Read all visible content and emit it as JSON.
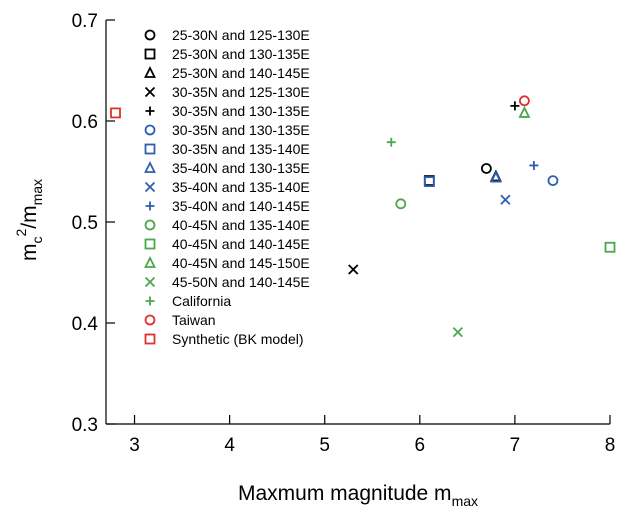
{
  "chart_data": {
    "type": "scatter",
    "title": "",
    "xlabel": {
      "main": "Maxmum magnitude m",
      "sub": "max"
    },
    "ylabel": {
      "m": "m",
      "c_sub": "c",
      "sup": "2",
      "slash": "/m",
      "max_sub": "max"
    },
    "xlim": [
      2.7,
      8.0
    ],
    "ylim": [
      0.3,
      0.7
    ],
    "xticks": [
      3,
      4,
      5,
      6,
      7,
      8
    ],
    "yticks": [
      0.3,
      0.4,
      0.5,
      0.6,
      0.7
    ],
    "xtick_labels": [
      "3",
      "4",
      "5",
      "6",
      "7",
      "8"
    ],
    "ytick_labels": [
      "0.3",
      "0.4",
      "0.5",
      "0.6",
      "0.7"
    ],
    "grid": false,
    "legend_position": "top-left",
    "series": [
      {
        "name": "25-30N and 125-130E",
        "marker": "circle",
        "color": "#000000",
        "points": [
          [
            6.7,
            0.553
          ]
        ]
      },
      {
        "name": "25-30N and 130-135E",
        "marker": "square",
        "color": "#000000",
        "points": [
          [
            6.1,
            0.541
          ]
        ]
      },
      {
        "name": "25-30N and 140-145E",
        "marker": "triangle",
        "color": "#000000",
        "points": [
          [
            6.8,
            0.545
          ]
        ]
      },
      {
        "name": "30-35N and 125-130E",
        "marker": "x",
        "color": "#000000",
        "points": [
          [
            5.3,
            0.453
          ]
        ]
      },
      {
        "name": "30-35N and 130-135E",
        "marker": "plus",
        "color": "#000000",
        "points": [
          [
            7.0,
            0.615
          ]
        ]
      },
      {
        "name": "30-35N and 130-135E",
        "marker": "circle",
        "color": "#2f5fb3",
        "points": [
          [
            7.4,
            0.541
          ]
        ]
      },
      {
        "name": "30-35N and 135-140E",
        "marker": "square",
        "color": "#2f5fb3",
        "points": [
          [
            6.1,
            0.54
          ]
        ]
      },
      {
        "name": "35-40N and 130-135E",
        "marker": "triangle",
        "color": "#2f5fb3",
        "points": [
          [
            6.8,
            0.544
          ]
        ]
      },
      {
        "name": "35-40N and 135-140E",
        "marker": "x",
        "color": "#2f5fb3",
        "points": [
          [
            6.9,
            0.522
          ]
        ]
      },
      {
        "name": "35-40N and 140-145E",
        "marker": "plus",
        "color": "#2f5fb3",
        "points": [
          [
            7.2,
            0.556
          ]
        ]
      },
      {
        "name": "40-45N and 135-140E",
        "marker": "circle",
        "color": "#4aa84a",
        "points": [
          [
            5.8,
            0.518
          ]
        ]
      },
      {
        "name": "40-45N and 140-145E",
        "marker": "square",
        "color": "#4aa84a",
        "points": [
          [
            8.0,
            0.475
          ]
        ]
      },
      {
        "name": "40-45N and 145-150E",
        "marker": "triangle",
        "color": "#4aa84a",
        "points": [
          [
            7.1,
            0.608
          ]
        ]
      },
      {
        "name": "45-50N and 140-145E",
        "marker": "x",
        "color": "#4aa84a",
        "points": [
          [
            6.4,
            0.391
          ]
        ]
      },
      {
        "name": "California",
        "marker": "plus",
        "color": "#4aa84a",
        "points": [
          [
            5.7,
            0.579
          ]
        ]
      },
      {
        "name": "Taiwan",
        "marker": "circle",
        "color": "#e03030",
        "points": [
          [
            7.1,
            0.62
          ]
        ]
      },
      {
        "name": "Synthetic (BK model)",
        "marker": "square",
        "color": "#e03030",
        "points": [
          [
            2.8,
            0.608
          ]
        ]
      }
    ]
  }
}
